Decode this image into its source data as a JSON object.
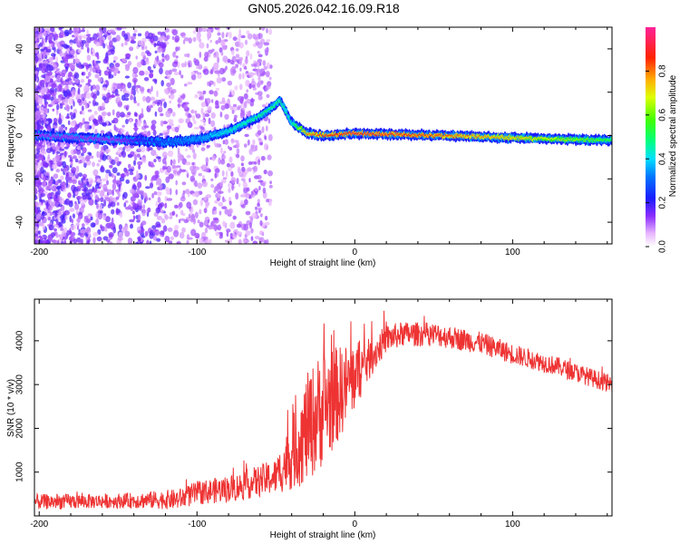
{
  "figure_title": "GN05.2026.042.16.09.R18",
  "chart_data": [
    {
      "type": "heatmap",
      "title": "GN05.2026.042.16.09.R18",
      "xlabel": "Height of straight line (km)",
      "ylabel": "Frequency (Hz)",
      "xlim": [
        -203,
        163
      ],
      "ylim": [
        -50,
        50
      ],
      "x_ticks": [
        -200,
        -100,
        0,
        100
      ],
      "y_ticks": [
        -40,
        -20,
        0,
        20,
        40
      ],
      "colorbar": {
        "label": "Normalized spectral amplitude",
        "range": [
          0,
          1
        ],
        "ticks": [
          "0.0",
          "0.2",
          "0.4",
          "0.6",
          "0.8"
        ],
        "tick_values": [
          0.0,
          0.2,
          0.4,
          0.6,
          0.8
        ]
      },
      "ridge": {
        "description_points_height_km": [
          -200,
          -150,
          -120,
          -100,
          -80,
          -60,
          -47,
          -40,
          -30,
          -20,
          0,
          50,
          100,
          150,
          163
        ],
        "frequency_hz": [
          0,
          -2,
          -3,
          -2,
          2,
          9,
          16,
          6,
          1,
          0,
          1,
          0,
          -1,
          -2,
          -2
        ],
        "amplitude": [
          0.15,
          0.15,
          0.3,
          0.35,
          0.45,
          0.5,
          0.5,
          0.45,
          0.8,
          0.85,
          0.9,
          0.85,
          0.75,
          0.6,
          0.55
        ]
      }
    },
    {
      "type": "line",
      "xlabel": "Height of straight line (km)",
      "ylabel": "SNR (10 * v/v)",
      "xlim": [
        -203,
        163
      ],
      "ylim": [
        0,
        4950
      ],
      "x_ticks": [
        -200,
        -100,
        0,
        100
      ],
      "y_ticks": [
        1000,
        2000,
        3000,
        4000
      ],
      "series": [
        {
          "name": "SNR",
          "color": "#ee3333",
          "envelope_x": [
            -203,
            -150,
            -112,
            -100,
            -75,
            -50,
            -40,
            -30,
            -20,
            -10,
            0,
            10,
            20,
            30,
            50,
            80,
            100,
            130,
            163
          ],
          "envelope_mean": [
            320,
            340,
            380,
            520,
            650,
            900,
            1400,
            2000,
            2500,
            2800,
            3200,
            3600,
            4050,
            4150,
            4150,
            3950,
            3700,
            3400,
            3000
          ],
          "envelope_spread": [
            200,
            180,
            260,
            300,
            350,
            450,
            900,
            1400,
            1500,
            1200,
            900,
            500,
            350,
            320,
            300,
            280,
            260,
            240,
            230
          ]
        }
      ]
    }
  ],
  "colors": {
    "snr_line": "#ee3333",
    "axis": "#000000"
  }
}
